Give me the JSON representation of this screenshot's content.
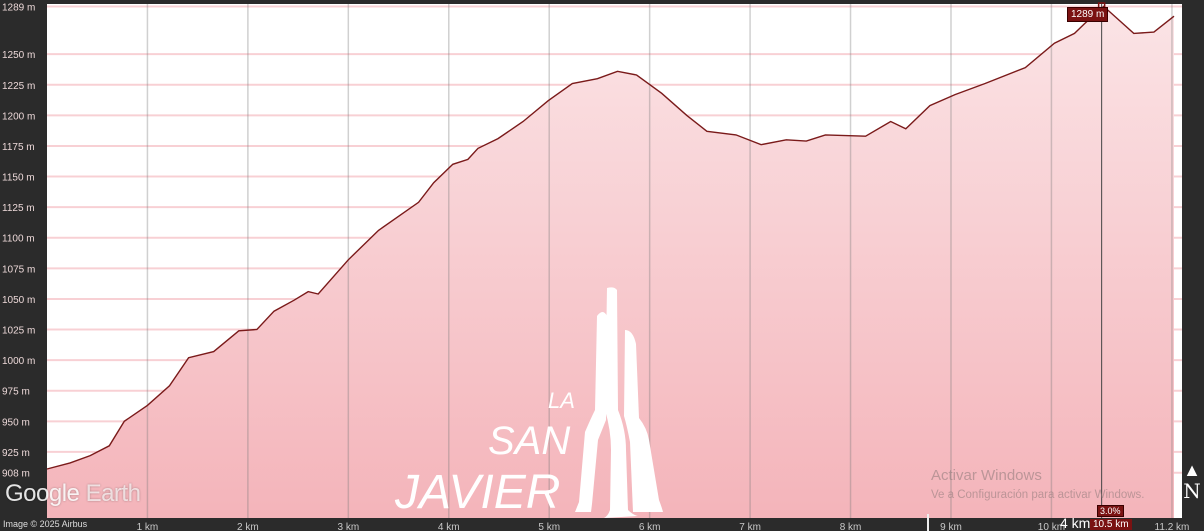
{
  "chart_data": {
    "type": "area",
    "title": "",
    "xlabel": "",
    "ylabel": "",
    "x_unit": "km",
    "y_unit": "m",
    "xlim": [
      0,
      11.3
    ],
    "ylim": [
      871,
      1291
    ],
    "grid": true,
    "y_ticks": [
      "1289 m",
      "1250 m",
      "1225 m",
      "1200 m",
      "1175 m",
      "1150 m",
      "1125 m",
      "1100 m",
      "1075 m",
      "1050 m",
      "1025 m",
      "1000 m",
      "975 m",
      "950 m",
      "925 m",
      "908 m"
    ],
    "y_tick_values": [
      1289,
      1250,
      1225,
      1200,
      1175,
      1150,
      1125,
      1100,
      1075,
      1050,
      1025,
      1000,
      975,
      950,
      925,
      908
    ],
    "x_ticks": [
      "1 km",
      "2 km",
      "3 km",
      "4 km",
      "5 km",
      "6 km",
      "7 km",
      "8 km",
      "9 km",
      "10 km",
      "10.5 km",
      "11.2 km"
    ],
    "x_tick_values": [
      1,
      2,
      3,
      4,
      5,
      6,
      7,
      8,
      9,
      10,
      10.5,
      11.2
    ],
    "x": [
      0,
      0.23,
      0.43,
      0.62,
      0.77,
      1.0,
      1.22,
      1.41,
      1.66,
      1.91,
      2.09,
      2.26,
      2.46,
      2.6,
      2.7,
      3.0,
      3.3,
      3.7,
      3.85,
      4.04,
      4.19,
      4.29,
      4.49,
      4.74,
      4.99,
      5.23,
      5.48,
      5.68,
      5.87,
      6.12,
      6.37,
      6.57,
      6.86,
      7.11,
      7.36,
      7.56,
      7.75,
      8.15,
      8.4,
      8.55,
      8.79,
      9.04,
      9.34,
      9.74,
      10.03,
      10.23,
      10.33,
      10.52,
      10.82,
      11.02,
      11.22
    ],
    "y": [
      911,
      916,
      922,
      930,
      950,
      963,
      979,
      1002,
      1007,
      1024,
      1025,
      1040,
      1049,
      1056,
      1054,
      1082,
      1106,
      1129,
      1145,
      1160,
      1164,
      1173,
      1181,
      1195,
      1212,
      1226,
      1230,
      1236,
      1233,
      1218,
      1200,
      1187,
      1184,
      1176,
      1180,
      1179,
      1184,
      1183,
      1195,
      1189,
      1208,
      1217,
      1226,
      1239,
      1259,
      1267,
      1275,
      1289,
      1267,
      1268,
      1281
    ],
    "marker": {
      "x": 10.5,
      "elevation_label": "1289 m",
      "grade_label": "3.0%",
      "distance_label": "10.5 km"
    },
    "colors": {
      "line": "#7a1a1a",
      "fill_top": "#fbe4e6",
      "fill_bottom": "#f4b4ba",
      "marker": "#7a1212"
    }
  },
  "overlay": {
    "google_logo_google": "Google",
    "google_logo_earth": "Earth",
    "image_credit": "Image © 2025 Airbus",
    "scale_label": "4 km",
    "compass_letter": "N",
    "windows_title": "Activar Windows",
    "windows_subtitle": "Ve a Configuración para activar Windows.",
    "logo_text": [
      "LA",
      "SAN",
      "JAVIER"
    ]
  }
}
